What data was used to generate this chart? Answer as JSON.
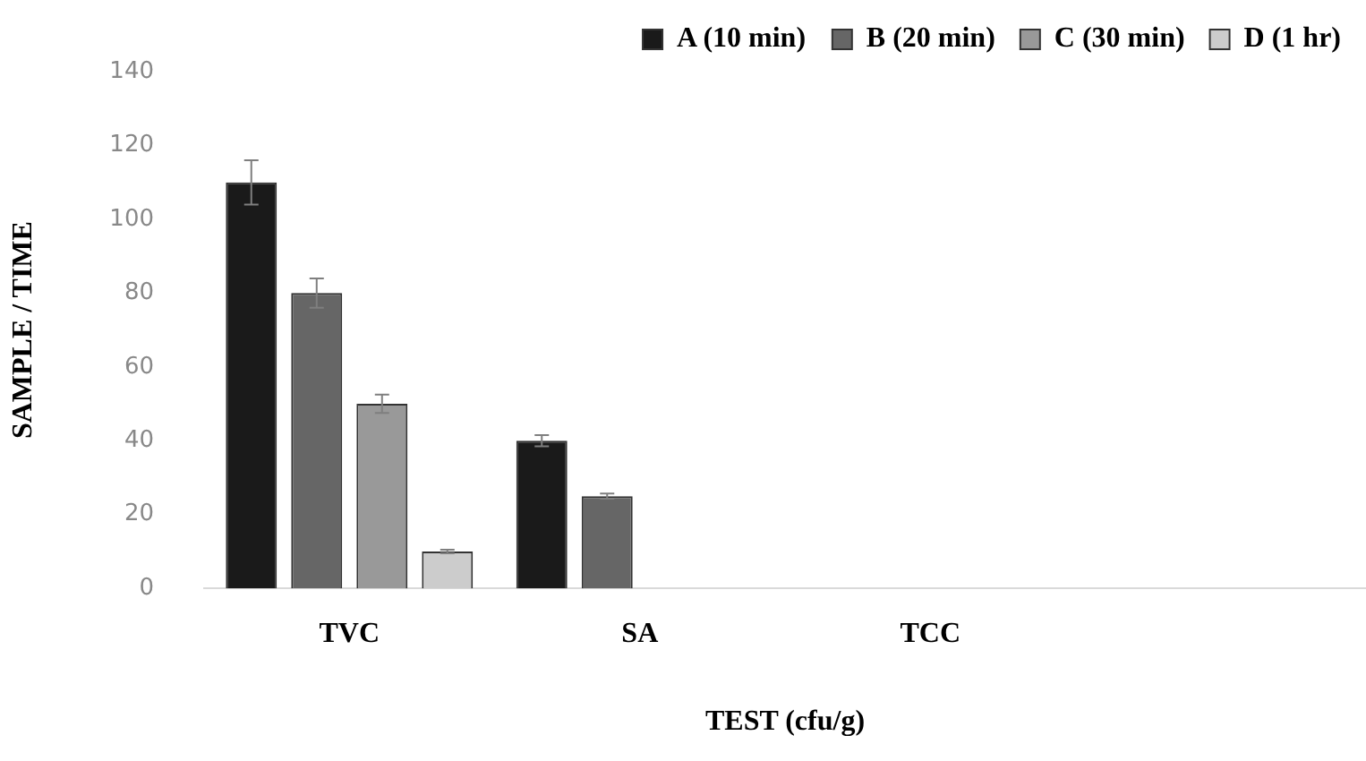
{
  "chart_data": {
    "type": "bar",
    "xlabel": "TEST (cfu/g)",
    "ylabel": "SAMPLE / TIME",
    "categories": [
      "TVC",
      "SA",
      "TCC",
      null
    ],
    "series": [
      {
        "name": "A (10 min)",
        "color": "#1a1a1a",
        "values": [
          110,
          40,
          null,
          null
        ],
        "errors": [
          6,
          1.5,
          null,
          null
        ]
      },
      {
        "name": "B (20 min)",
        "color": "#666666",
        "values": [
          80,
          25,
          null,
          null
        ],
        "errors": [
          4,
          0.7,
          null,
          null
        ]
      },
      {
        "name": "C (30 min)",
        "color": "#999999",
        "values": [
          50,
          null,
          null,
          null
        ],
        "errors": [
          2.5,
          null,
          null,
          null
        ]
      },
      {
        "name": "D (1 hr)",
        "color": "#cccccc",
        "values": [
          10,
          null,
          null,
          null
        ],
        "errors": [
          0.5,
          null,
          null,
          null
        ]
      }
    ],
    "ylim": [
      0,
      140
    ],
    "yticks": [
      0,
      20,
      40,
      60,
      80,
      100,
      120,
      140
    ],
    "grid": false,
    "legend": "top right"
  }
}
